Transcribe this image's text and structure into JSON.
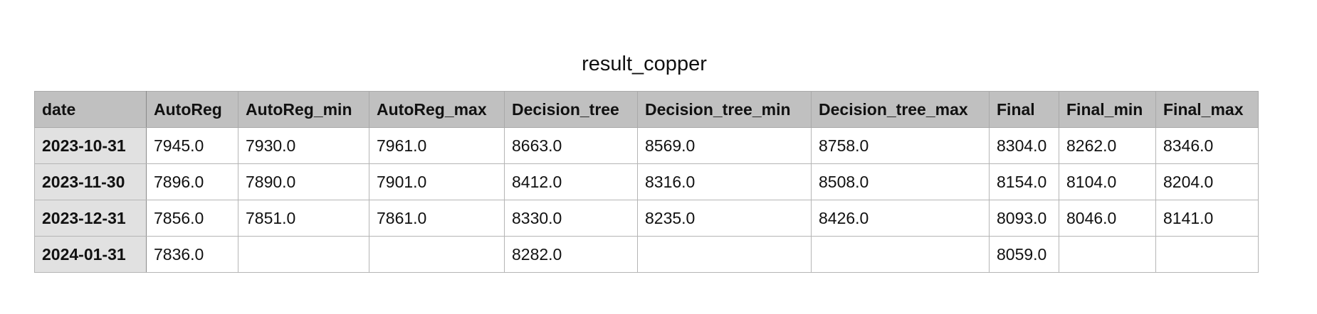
{
  "title": "result_copper",
  "table": {
    "columns": [
      "date",
      "AutoReg",
      "AutoReg_min",
      "AutoReg_max",
      "Decision_tree",
      "Decision_tree_min",
      "Decision_tree_max",
      "Final",
      "Final_min",
      "Final_max"
    ],
    "rows": [
      {
        "date": "2023-10-31",
        "cells": [
          "7945.0",
          "7930.0",
          "7961.0",
          "8663.0",
          "8569.0",
          "8758.0",
          "8304.0",
          "8262.0",
          "8346.0"
        ]
      },
      {
        "date": "2023-11-30",
        "cells": [
          "7896.0",
          "7890.0",
          "7901.0",
          "8412.0",
          "8316.0",
          "8508.0",
          "8154.0",
          "8104.0",
          "8204.0"
        ]
      },
      {
        "date": "2023-12-31",
        "cells": [
          "7856.0",
          "7851.0",
          "7861.0",
          "8330.0",
          "8235.0",
          "8426.0",
          "8093.0",
          "8046.0",
          "8141.0"
        ]
      },
      {
        "date": "2024-01-31",
        "cells": [
          "7836.0",
          "",
          "",
          "8282.0",
          "",
          "",
          "8059.0",
          "",
          ""
        ]
      }
    ]
  }
}
